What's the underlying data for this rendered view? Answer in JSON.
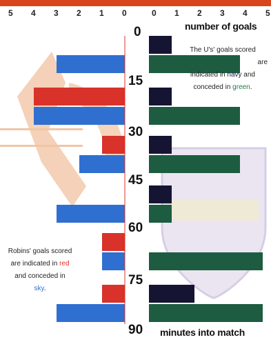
{
  "chart_data": {
    "type": "bar",
    "left_axis_ticks": [
      "5",
      "4",
      "3",
      "2",
      "1",
      "0"
    ],
    "right_axis_ticks": [
      "0",
      "1",
      "2",
      "3",
      "4",
      "5"
    ],
    "intervals": [
      "0",
      "15",
      "30",
      "45",
      "60",
      "75",
      "90"
    ],
    "xlabel": "number of goals",
    "ylabel": "minutes into match",
    "xlim": [
      0,
      5
    ],
    "series": [
      {
        "name": "Robins' goals scored",
        "side": "left",
        "color": "#d8322a",
        "values": [
          0,
          4,
          1,
          0,
          1,
          1
        ]
      },
      {
        "name": "Robins' goals conceded",
        "side": "left",
        "color": "#2f6fd0",
        "values": [
          3,
          4,
          2,
          3,
          1,
          3
        ]
      },
      {
        "name": "The U's' goals scored",
        "side": "right",
        "color": "#161433",
        "values": [
          1,
          1,
          1,
          1,
          0,
          2
        ]
      },
      {
        "name": "The U's' goals conceded",
        "side": "right",
        "color": "#1d5c40",
        "values": [
          4,
          4,
          4,
          1,
          5,
          5
        ]
      }
    ]
  },
  "legend_us": {
    "line1": "The U's' goals scored",
    "line2": "are",
    "line3_pre": "indicated in",
    "navy_word": "navy",
    "line3_post": "and",
    "line4_pre": "conceded in",
    "green_word": "green",
    "line4_post": "."
  },
  "legend_robins": {
    "line1": "Robins' goals scored",
    "line2_pre": "are indicated in",
    "red_word": "red",
    "line3": "and conceded in",
    "sky_word": "sky",
    "line4_post": "."
  }
}
